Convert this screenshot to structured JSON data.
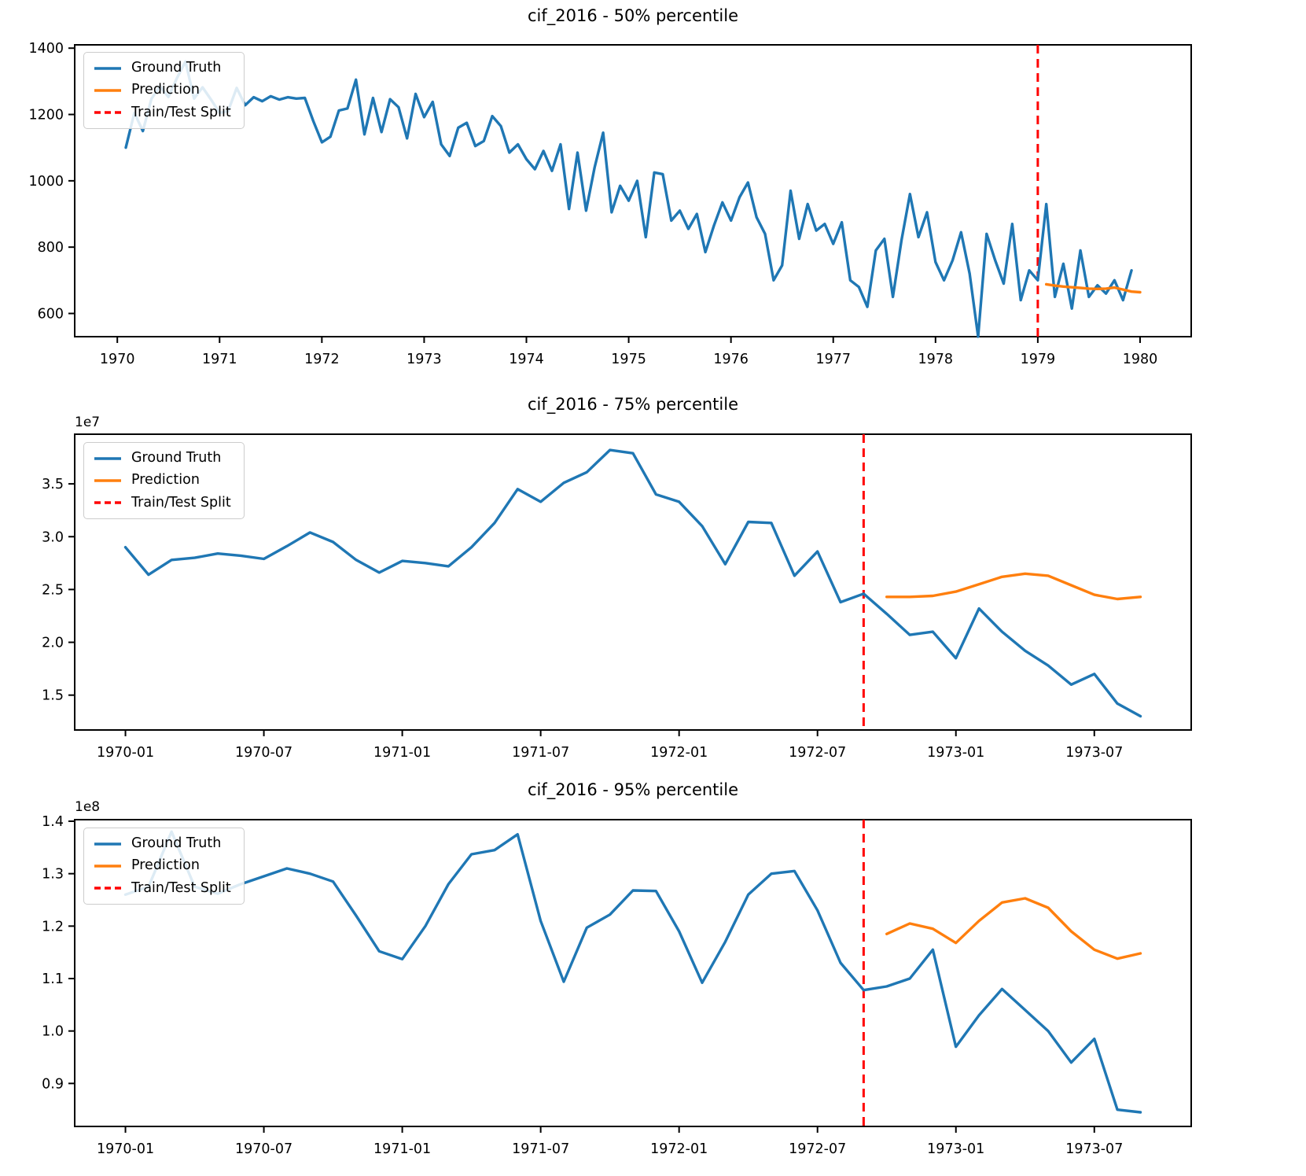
{
  "page": {
    "background": "#ffffff"
  },
  "colors": {
    "ground_truth": "#1f77b4",
    "prediction": "#ff7f0e",
    "split": "#ff0000",
    "axis": "#000000",
    "legend_border": "#cccccc"
  },
  "legend": {
    "items": [
      {
        "label": "Ground Truth",
        "color": "#1f77b4",
        "style": "solid"
      },
      {
        "label": "Prediction",
        "color": "#ff7f0e",
        "style": "solid"
      },
      {
        "label": "Train/Test Split",
        "color": "#ff0000",
        "style": "dashed"
      }
    ]
  },
  "chart_data": [
    {
      "type": "line",
      "title": "cif_2016 - 50% percentile",
      "y_offset_label": "",
      "x_unit": "months since 1970-01",
      "grid": false,
      "legend_position": "upper left",
      "xlim": [
        -5,
        126
      ],
      "ylim": [
        530,
        1410
      ],
      "xticks": [
        {
          "pos": 0,
          "label": "1970"
        },
        {
          "pos": 12,
          "label": "1971"
        },
        {
          "pos": 24,
          "label": "1972"
        },
        {
          "pos": 36,
          "label": "1973"
        },
        {
          "pos": 48,
          "label": "1974"
        },
        {
          "pos": 60,
          "label": "1975"
        },
        {
          "pos": 72,
          "label": "1976"
        },
        {
          "pos": 84,
          "label": "1977"
        },
        {
          "pos": 96,
          "label": "1978"
        },
        {
          "pos": 108,
          "label": "1979"
        },
        {
          "pos": 120,
          "label": "1980"
        }
      ],
      "yticks": [
        {
          "v": 600,
          "label": "600"
        },
        {
          "v": 800,
          "label": "800"
        },
        {
          "v": 1000,
          "label": "1000"
        },
        {
          "v": 1200,
          "label": "1200"
        },
        {
          "v": 1400,
          "label": "1400"
        }
      ],
      "split": {
        "label": "Train/Test Split",
        "x": 108
      },
      "series": [
        {
          "name": "Ground Truth",
          "color": "#1f77b4",
          "start": 1,
          "values": [
            1100,
            1205,
            1150,
            1247,
            1285,
            1253,
            1310,
            1360,
            1248,
            1282,
            1245,
            1205,
            1210,
            1280,
            1228,
            1252,
            1240,
            1255,
            1245,
            1252,
            1248,
            1250,
            1180,
            1116,
            1133,
            1212,
            1218,
            1305,
            1140,
            1250,
            1147,
            1246,
            1222,
            1128,
            1262,
            1192,
            1238,
            1110,
            1075,
            1160,
            1175,
            1105,
            1120,
            1195,
            1165,
            1085,
            1110,
            1065,
            1035,
            1090,
            1030,
            1110,
            915,
            1085,
            910,
            1040,
            1145,
            905,
            985,
            940,
            1000,
            830,
            1025,
            1020,
            880,
            910,
            855,
            900,
            785,
            865,
            935,
            880,
            950,
            995,
            890,
            840,
            700,
            745,
            970,
            825,
            930,
            850,
            870,
            810,
            875,
            700,
            680,
            620,
            790,
            825,
            650,
            820,
            960,
            830,
            905,
            755,
            700,
            760,
            845,
            720,
            530,
            840,
            760,
            690,
            870,
            640,
            730,
            700,
            930,
            650,
            750,
            615,
            790,
            650,
            685,
            660,
            700,
            640,
            730
          ]
        },
        {
          "name": "Prediction",
          "color": "#ff7f0e",
          "start": 109,
          "values": [
            688,
            684,
            681,
            679,
            677,
            675,
            674,
            675,
            678,
            672,
            666,
            664
          ]
        }
      ]
    },
    {
      "type": "line",
      "title": "cif_2016 - 75% percentile",
      "y_offset_label": "1e7",
      "x_unit": "months since 1970-01",
      "grid": false,
      "legend_position": "upper left",
      "xlim": [
        -2.2,
        46.2
      ],
      "ylim": [
        1.17,
        3.97
      ],
      "xticks": [
        {
          "pos": 0,
          "label": "1970-01"
        },
        {
          "pos": 6,
          "label": "1970-07"
        },
        {
          "pos": 12,
          "label": "1971-01"
        },
        {
          "pos": 18,
          "label": "1971-07"
        },
        {
          "pos": 24,
          "label": "1972-01"
        },
        {
          "pos": 30,
          "label": "1972-07"
        },
        {
          "pos": 36,
          "label": "1973-01"
        },
        {
          "pos": 42,
          "label": "1973-07"
        }
      ],
      "yticks": [
        {
          "v": 1.5,
          "label": "1.5"
        },
        {
          "v": 2.0,
          "label": "2.0"
        },
        {
          "v": 2.5,
          "label": "2.5"
        },
        {
          "v": 3.0,
          "label": "3.0"
        },
        {
          "v": 3.5,
          "label": "3.5"
        }
      ],
      "split": {
        "label": "Train/Test Split",
        "x": 32
      },
      "series": [
        {
          "name": "Ground Truth",
          "color": "#1f77b4",
          "start": 0,
          "values": [
            2.9,
            2.64,
            2.78,
            2.8,
            2.84,
            2.82,
            2.79,
            2.91,
            3.04,
            2.95,
            2.78,
            2.66,
            2.77,
            2.75,
            2.72,
            2.9,
            3.13,
            3.45,
            3.33,
            3.51,
            3.61,
            3.82,
            3.79,
            3.4,
            3.33,
            3.1,
            2.74,
            3.14,
            3.13,
            2.63,
            2.86,
            2.38,
            2.46,
            2.27,
            2.07,
            2.1,
            1.85,
            2.32,
            2.1,
            1.92,
            1.78,
            1.6,
            1.7,
            1.42,
            1.3
          ]
        },
        {
          "name": "Prediction",
          "color": "#ff7f0e",
          "start": 33,
          "values": [
            2.43,
            2.43,
            2.44,
            2.48,
            2.55,
            2.62,
            2.65,
            2.63,
            2.54,
            2.45,
            2.41,
            2.43
          ]
        }
      ]
    },
    {
      "type": "line",
      "title": "cif_2016 - 95% percentile",
      "y_offset_label": "1e8",
      "x_unit": "months since 1970-01",
      "grid": false,
      "legend_position": "upper left",
      "xlim": [
        -2.2,
        46.2
      ],
      "ylim": [
        0.818,
        1.403
      ],
      "xticks": [
        {
          "pos": 0,
          "label": "1970-01"
        },
        {
          "pos": 6,
          "label": "1970-07"
        },
        {
          "pos": 12,
          "label": "1971-01"
        },
        {
          "pos": 18,
          "label": "1971-07"
        },
        {
          "pos": 24,
          "label": "1972-01"
        },
        {
          "pos": 30,
          "label": "1972-07"
        },
        {
          "pos": 36,
          "label": "1973-01"
        },
        {
          "pos": 42,
          "label": "1973-07"
        }
      ],
      "yticks": [
        {
          "v": 0.9,
          "label": "0.9"
        },
        {
          "v": 1.0,
          "label": "1.0"
        },
        {
          "v": 1.1,
          "label": "1.1"
        },
        {
          "v": 1.2,
          "label": "1.2"
        },
        {
          "v": 1.3,
          "label": "1.3"
        },
        {
          "v": 1.4,
          "label": "1.4"
        }
      ],
      "split": {
        "label": "Train/Test Split",
        "x": 32
      },
      "series": [
        {
          "name": "Ground Truth",
          "color": "#1f77b4",
          "start": 0,
          "values": [
            1.26,
            1.275,
            1.38,
            1.275,
            1.262,
            1.28,
            1.295,
            1.31,
            1.3,
            1.285,
            1.22,
            1.152,
            1.137,
            1.2,
            1.28,
            1.337,
            1.345,
            1.375,
            1.21,
            1.094,
            1.197,
            1.222,
            1.268,
            1.267,
            1.19,
            1.092,
            1.17,
            1.26,
            1.3,
            1.305,
            1.23,
            1.13,
            1.078,
            1.085,
            1.1,
            1.155,
            0.97,
            1.03,
            1.08,
            1.04,
            1.0,
            0.94,
            0.985,
            0.85,
            0.845
          ]
        },
        {
          "name": "Prediction",
          "color": "#ff7f0e",
          "start": 33,
          "values": [
            1.185,
            1.205,
            1.195,
            1.168,
            1.21,
            1.245,
            1.253,
            1.235,
            1.19,
            1.155,
            1.138,
            1.148
          ]
        }
      ]
    }
  ]
}
